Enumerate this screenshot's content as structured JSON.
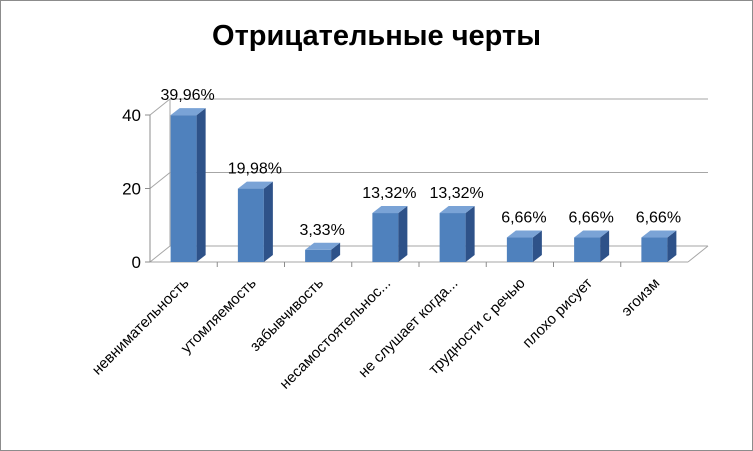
{
  "chart_data": {
    "type": "bar",
    "title": "Отрицательные черты",
    "categories": [
      "невнимательность",
      "утомляемость",
      "забывчивость",
      "несамостоятельнос...",
      "не слушает когда...",
      "трудности с речью",
      "плохо рисует",
      "эгоизм"
    ],
    "values": [
      39.96,
      19.98,
      3.33,
      13.32,
      13.32,
      6.66,
      6.66,
      6.66
    ],
    "data_labels": [
      "39,96%",
      "19,98%",
      "3,33%",
      "13,32%",
      "13,32%",
      "6,66%",
      "6,66%",
      "6,66%"
    ],
    "ylim": [
      0,
      40
    ],
    "yticks": [
      0,
      20,
      40
    ],
    "grid": true,
    "style": "3d-column",
    "colors": {
      "bar_front": "#4f81bd",
      "bar_side": "#2e5289",
      "bar_top": "#7aa3d6",
      "grid": "#a6a6a6",
      "frame": "#8c8c8c"
    }
  }
}
